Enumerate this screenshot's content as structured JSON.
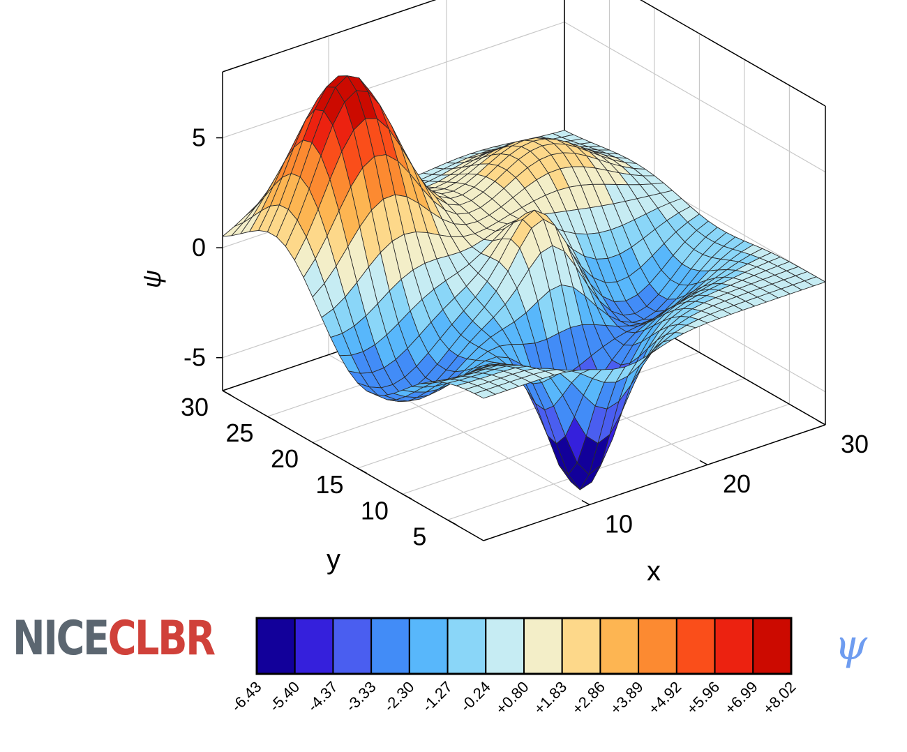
{
  "chart_data": {
    "type": "surface",
    "title": "",
    "xlabel": "x",
    "ylabel": "y",
    "zlabel": "ψ",
    "xlim": [
      1,
      30
    ],
    "ylim": [
      1,
      30
    ],
    "zlim": [
      -6.5,
      8
    ],
    "x_ticks": [
      10,
      20,
      30
    ],
    "y_ticks": [
      5,
      10,
      15,
      20,
      25,
      30
    ],
    "z_ticks": [
      -5,
      0,
      5
    ],
    "x_tick_labels": [
      "10",
      "20",
      "30"
    ],
    "y_tick_labels": [
      "5",
      "10",
      "15",
      "20",
      "25",
      "30"
    ],
    "z_tick_labels": [
      "-5",
      "0",
      "5"
    ],
    "grid": true,
    "view": "3D box, default azimuth/elevation",
    "grid_size": [
      30,
      30
    ],
    "z_range": [
      -6.43,
      8.02
    ],
    "features": [
      {
        "kind": "peak",
        "x": 7,
        "y": 24,
        "z": 8.02
      },
      {
        "kind": "peak",
        "x": 22,
        "y": 22,
        "z": 2.7
      },
      {
        "kind": "peak",
        "x": 16,
        "y": 14,
        "z": 3.1
      },
      {
        "kind": "trough",
        "x": 16,
        "y": 9,
        "z": -3.6
      },
      {
        "kind": "trough",
        "x": 13,
        "y": 6,
        "z": -6.43
      }
    ]
  },
  "colorbar": {
    "title": "ψ",
    "tick_labels": [
      "-6.43",
      "-5.40",
      "-4.37",
      "-3.33",
      "-2.30",
      "-1.27",
      "-0.24",
      "+0.80",
      "+1.83",
      "+2.86",
      "+3.89",
      "+4.92",
      "+5.96",
      "+6.99",
      "+8.02"
    ],
    "colors": [
      "#12009a",
      "#3520dc",
      "#4a5ef0",
      "#428cf7",
      "#58b7fb",
      "#8ad6f8",
      "#c6ecf3",
      "#f3eec8",
      "#fdd88a",
      "#fdb552",
      "#fc8a31",
      "#fa4e1a",
      "#ec2210",
      "#cc0a00"
    ]
  },
  "logo": {
    "part1": "NICE",
    "part2": "CLBR"
  }
}
